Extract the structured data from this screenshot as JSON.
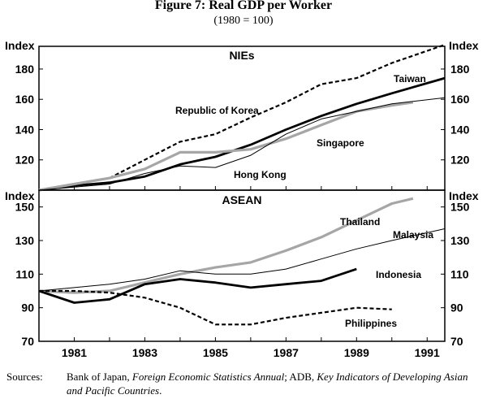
{
  "figure": {
    "title": "Figure 7: Real GDP per Worker",
    "subtitle": "(1980 = 100)"
  },
  "sources": {
    "label": "Sources:",
    "part1": "Bank of Japan, ",
    "italic1": "Foreign Economic Statistics Annual",
    "part2": "; ADB, ",
    "italic2": "Key Indicators of Developing Asian and Pacific Countries",
    "part3": "."
  },
  "colors": {
    "gray_series": "#a6a6a6",
    "black": "#000000"
  },
  "chart_data": [
    {
      "type": "line",
      "panel_title": "NIEs",
      "ylabel_left": "Index",
      "ylabel_right": "Index",
      "ylim": [
        100,
        195
      ],
      "yticks": [
        120,
        140,
        160,
        180
      ],
      "x_tick_labels": [
        "1981",
        "1983",
        "1985",
        "1987",
        "1989",
        "1991"
      ],
      "xlim": [
        1980,
        1991.5
      ],
      "series": [
        {
          "name": "Republic of Korea",
          "style": "dashed",
          "x": [
            1980,
            1981,
            1982,
            1983,
            1984,
            1985,
            1986,
            1987,
            1988,
            1989,
            1990,
            1991.5
          ],
          "values": [
            100,
            104,
            108,
            120,
            132,
            137,
            148,
            158,
            170,
            174,
            184,
            196
          ]
        },
        {
          "name": "Taiwan",
          "style": "thick-black",
          "x": [
            1980,
            1981,
            1982,
            1983,
            1984,
            1985,
            1986,
            1987,
            1988,
            1989,
            1990,
            1991.5
          ],
          "values": [
            100,
            103,
            105,
            109,
            117,
            122,
            130,
            140,
            149,
            157,
            164,
            174
          ]
        },
        {
          "name": "Singapore",
          "style": "thick-gray",
          "x": [
            1980,
            1981,
            1982,
            1983,
            1984,
            1985,
            1986,
            1987,
            1988,
            1989,
            1990,
            1990.6
          ],
          "values": [
            100,
            104,
            108,
            114,
            125,
            125,
            127,
            134,
            143,
            152,
            156,
            158
          ]
        },
        {
          "name": "Hong Kong",
          "style": "thin-black",
          "x": [
            1980,
            1981,
            1982,
            1983,
            1984,
            1985,
            1986,
            1987,
            1988,
            1989,
            1990,
            1991.5
          ],
          "values": [
            100,
            102,
            104,
            111,
            116,
            115,
            123,
            137,
            147,
            152,
            157,
            161
          ]
        }
      ],
      "labels": {
        "korea": "Republic of Korea",
        "taiwan": "Taiwan",
        "singapore": "Singapore",
        "hongkong": "Hong Kong"
      }
    },
    {
      "type": "line",
      "panel_title": "ASEAN",
      "ylabel_left": "Index",
      "ylabel_right": "Index",
      "ylim": [
        70,
        160
      ],
      "yticks": [
        70,
        90,
        110,
        130,
        150
      ],
      "x_tick_labels": [
        "1981",
        "1983",
        "1985",
        "1987",
        "1989",
        "1991"
      ],
      "xlim": [
        1980,
        1991.5
      ],
      "series": [
        {
          "name": "Thailand",
          "style": "thick-gray",
          "x": [
            1980,
            1981,
            1982,
            1983,
            1984,
            1985,
            1986,
            1987,
            1988,
            1989,
            1990,
            1990.6
          ],
          "values": [
            100,
            99,
            100,
            105,
            110,
            114,
            117,
            124,
            132,
            142,
            152,
            155
          ]
        },
        {
          "name": "Malaysia",
          "style": "thin-black",
          "x": [
            1980,
            1981,
            1982,
            1983,
            1984,
            1985,
            1986,
            1987,
            1988,
            1989,
            1990,
            1991.5
          ],
          "values": [
            100,
            102,
            104,
            107,
            112,
            110,
            110,
            113,
            119,
            125,
            130,
            137
          ]
        },
        {
          "name": "Indonesia",
          "style": "thick-black",
          "x": [
            1980,
            1981,
            1982,
            1983,
            1984,
            1985,
            1986,
            1987,
            1988,
            1989
          ],
          "values": [
            100,
            93,
            95,
            104,
            107,
            105,
            102,
            104,
            106,
            113
          ]
        },
        {
          "name": "Philippines",
          "style": "dashed",
          "x": [
            1980,
            1981,
            1982,
            1983,
            1984,
            1985,
            1986,
            1987,
            1988,
            1989,
            1990
          ],
          "values": [
            100,
            100,
            99,
            96,
            90,
            80,
            80,
            84,
            87,
            90,
            89
          ]
        }
      ],
      "labels": {
        "thailand": "Thailand",
        "malaysia": "Malaysia",
        "indonesia": "Indonesia",
        "philippines": "Philippines"
      }
    }
  ]
}
